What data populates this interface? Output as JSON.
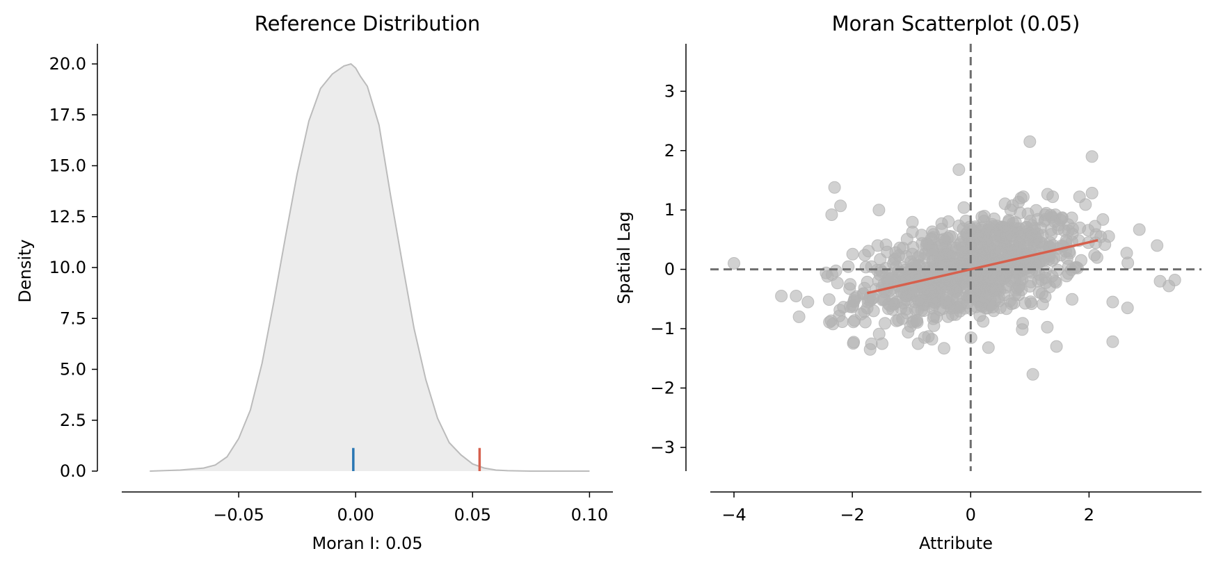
{
  "chart_data": [
    {
      "type": "area",
      "title": "Reference Distribution",
      "xlabel": "Moran I: 0.05",
      "ylabel": "Density",
      "xlim": [
        -0.1,
        0.11
      ],
      "ylim": [
        0,
        20
      ],
      "xticks": [
        -0.05,
        0.0,
        0.05,
        0.1
      ],
      "xtick_labels": [
        "−0.05",
        "0.00",
        "0.05",
        "0.10"
      ],
      "yticks": [
        0,
        2.5,
        5,
        7.5,
        10,
        12.5,
        15,
        17.5,
        20
      ],
      "ytick_labels": [
        "0.0",
        "2.5",
        "5.0",
        "7.5",
        "10.0",
        "12.5",
        "15.0",
        "17.5",
        "20.0"
      ],
      "density_curve": {
        "x": [
          -0.088,
          -0.075,
          -0.065,
          -0.06,
          -0.055,
          -0.05,
          -0.045,
          -0.04,
          -0.035,
          -0.03,
          -0.025,
          -0.02,
          -0.015,
          -0.01,
          -0.005,
          -0.002,
          0.0,
          0.002,
          0.005,
          0.01,
          0.015,
          0.02,
          0.025,
          0.03,
          0.035,
          0.04,
          0.045,
          0.05,
          0.055,
          0.06,
          0.065,
          0.075,
          0.1
        ],
        "y": [
          0.0,
          0.05,
          0.15,
          0.3,
          0.7,
          1.6,
          3.0,
          5.3,
          8.3,
          11.5,
          14.6,
          17.2,
          18.8,
          19.5,
          19.9,
          20.0,
          19.8,
          19.4,
          18.9,
          17.0,
          13.5,
          10.2,
          7.0,
          4.5,
          2.6,
          1.4,
          0.8,
          0.35,
          0.15,
          0.05,
          0.02,
          0.0,
          0.0
        ],
        "line_color": "#bbbbbb",
        "fill_color": "#ececec"
      },
      "markers": [
        {
          "name": "expected-value",
          "x": -0.001,
          "height": 1.0,
          "color": "#2a77b4"
        },
        {
          "name": "observed-moran-i",
          "x": 0.053,
          "height": 1.0,
          "color": "#d6604d"
        }
      ]
    },
    {
      "type": "scatter",
      "title": "Moran Scatterplot (0.05)",
      "xlabel": "Attribute",
      "ylabel": "Spatial Lag",
      "xlim": [
        -4.4,
        3.9
      ],
      "ylim": [
        -3.4,
        3.8
      ],
      "xticks": [
        -4,
        -2,
        0,
        2
      ],
      "xtick_labels": [
        "−4",
        "−2",
        "0",
        "2"
      ],
      "yticks": [
        -3,
        -2,
        -1,
        0,
        1,
        2,
        3
      ],
      "ytick_labels": [
        "−3",
        "−2",
        "−1",
        "0",
        "1",
        "2",
        "3"
      ],
      "point_color": "#b3b3b3",
      "point_count": 900,
      "outliers": [
        [
          -4.0,
          0.1
        ],
        [
          -3.2,
          -0.45
        ],
        [
          -2.95,
          -0.45
        ],
        [
          -2.9,
          -0.8
        ],
        [
          -2.75,
          -0.55
        ],
        [
          -2.3,
          1.38
        ],
        [
          -2.2,
          1.07
        ],
        [
          -2.35,
          0.92
        ],
        [
          -1.55,
          1.0
        ],
        [
          -1.7,
          -1.35
        ],
        [
          2.05,
          1.9
        ],
        [
          1.0,
          2.15
        ],
        [
          -0.2,
          1.68
        ],
        [
          1.05,
          -1.77
        ],
        [
          2.85,
          0.67
        ],
        [
          3.15,
          0.4
        ],
        [
          3.35,
          -0.28
        ],
        [
          3.45,
          -0.18
        ],
        [
          3.2,
          -0.2
        ],
        [
          2.4,
          -0.55
        ],
        [
          2.65,
          -0.65
        ],
        [
          2.4,
          -1.22
        ],
        [
          0.3,
          -1.32
        ],
        [
          -0.45,
          -1.33
        ],
        [
          1.45,
          -1.3
        ]
      ],
      "regression_line": {
        "x": [
          -1.75,
          2.15
        ],
        "y": [
          -0.4,
          0.49
        ],
        "color": "#d6604d"
      },
      "reference_lines": {
        "x": 0,
        "y": 0,
        "color": "#6e6e6e",
        "style": "dashed"
      }
    }
  ]
}
